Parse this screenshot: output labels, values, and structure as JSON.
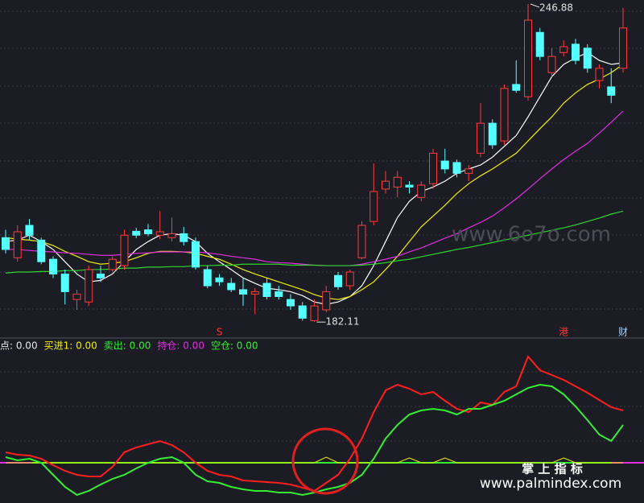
{
  "chart_data": [
    {
      "type": "candlestick",
      "ylim": [
        180.5,
        247.7
      ],
      "up_color": "#ff3b3b",
      "down_color": "#54ffff",
      "ohlc": [
        [
          199.3,
          200.9,
          196.1,
          196.9
        ],
        [
          195.2,
          201.8,
          194.4,
          200.5
        ],
        [
          201.8,
          203.1,
          198.8,
          199.8
        ],
        [
          198.8,
          199.3,
          193.9,
          194.4
        ],
        [
          194.9,
          195.5,
          191.1,
          191.9
        ],
        [
          191.9,
          192.8,
          185.7,
          188.3
        ],
        [
          186.7,
          188.7,
          184.6,
          187.8
        ],
        [
          186.2,
          193.6,
          185.4,
          192.8
        ],
        [
          191.9,
          193.6,
          190.3,
          191.1
        ],
        [
          192.8,
          195.5,
          192.3,
          194.9
        ],
        [
          193.6,
          200.9,
          192.8,
          199.8
        ],
        [
          200.6,
          201.3,
          199.2,
          199.8
        ],
        [
          200.9,
          202.1,
          199.6,
          200.1
        ],
        [
          199.8,
          204.7,
          199.0,
          200.5
        ],
        [
          199.3,
          203.4,
          198.5,
          200.1
        ],
        [
          200.1,
          201.5,
          197.7,
          198.5
        ],
        [
          198.5,
          199.3,
          192.8,
          193.3
        ],
        [
          192.8,
          193.6,
          189.0,
          189.5
        ],
        [
          191.1,
          191.9,
          189.5,
          190.3
        ],
        [
          190.0,
          191.1,
          188.2,
          188.7
        ],
        [
          188.7,
          191.1,
          185.4,
          187.8
        ],
        [
          187.8,
          189.0,
          183.7,
          188.3
        ],
        [
          190.0,
          191.1,
          186.7,
          187.3
        ],
        [
          188.3,
          189.5,
          186.7,
          187.3
        ],
        [
          186.7,
          187.8,
          184.6,
          185.4
        ],
        [
          185.4,
          186.2,
          182.4,
          182.9
        ],
        [
          182.4,
          186.7,
          182.11,
          185.4
        ],
        [
          184.6,
          189.5,
          184.1,
          188.3
        ],
        [
          191.6,
          192.3,
          188.7,
          189.3
        ],
        [
          189.5,
          192.8,
          188.7,
          192.3
        ],
        [
          195.2,
          202.6,
          194.9,
          201.8
        ],
        [
          202.6,
          214.4,
          201.8,
          208.7
        ],
        [
          209.2,
          212.9,
          208.3,
          210.8
        ],
        [
          209.6,
          212.9,
          207.5,
          211.6
        ],
        [
          210.0,
          210.8,
          208.3,
          209.6
        ],
        [
          207.5,
          210.8,
          206.7,
          210.0
        ],
        [
          210.3,
          217.4,
          209.2,
          216.5
        ],
        [
          214.9,
          217.4,
          212.4,
          213.3
        ],
        [
          214.6,
          215.2,
          211.6,
          212.4
        ],
        [
          212.4,
          214.1,
          210.8,
          213.3
        ],
        [
          216.5,
          226.7,
          215.7,
          222.6
        ],
        [
          222.6,
          223.4,
          217.4,
          218.2
        ],
        [
          219.0,
          230.5,
          218.2,
          229.7
        ],
        [
          230.5,
          235.4,
          228.8,
          229.3
        ],
        [
          228.0,
          246.88,
          227.2,
          243.6
        ],
        [
          241.1,
          242.0,
          235.4,
          236.2
        ],
        [
          232.9,
          237.9,
          232.1,
          236.2
        ],
        [
          237.0,
          239.5,
          236.2,
          238.2
        ],
        [
          238.7,
          239.8,
          234.6,
          235.4
        ],
        [
          237.9,
          238.7,
          232.9,
          233.8
        ],
        [
          231.3,
          234.6,
          229.7,
          233.8
        ],
        [
          230.0,
          233.8,
          226.7,
          228.3
        ],
        [
          233.8,
          246.1,
          232.9,
          242.0
        ]
      ],
      "lines": [
        {
          "color": "#ffffff",
          "values": [
            198.5,
            198.8,
            199.8,
            198.5,
            196.9,
            194.4,
            191.9,
            190.3,
            190.6,
            191.9,
            194.4,
            196.9,
            198.5,
            199.8,
            200.1,
            199.8,
            198.5,
            196.1,
            194.4,
            192.8,
            191.1,
            190.0,
            189.0,
            188.7,
            188.3,
            187.5,
            186.2,
            185.7,
            186.2,
            187.3,
            189.5,
            193.6,
            198.5,
            203.4,
            206.7,
            208.7,
            209.6,
            210.8,
            212.4,
            213.3,
            214.1,
            215.7,
            217.9,
            220.1,
            223.9,
            228.0,
            232.1,
            234.6,
            235.9,
            237.0,
            235.4,
            234.6,
            234.9
          ]
        },
        {
          "color": "#f0f000",
          "values": [
            199.3,
            199.0,
            198.8,
            198.5,
            197.7,
            196.5,
            195.5,
            194.4,
            193.9,
            194.1,
            194.4,
            195.2,
            196.1,
            196.5,
            196.5,
            196.4,
            196.1,
            195.5,
            194.9,
            193.9,
            192.8,
            191.9,
            191.1,
            190.3,
            189.5,
            188.7,
            187.7,
            187.0,
            186.7,
            187.3,
            188.7,
            190.3,
            192.8,
            195.5,
            198.5,
            201.5,
            203.7,
            205.9,
            208.3,
            210.3,
            211.9,
            213.3,
            214.9,
            216.5,
            219.0,
            221.5,
            223.9,
            226.7,
            228.8,
            230.5,
            231.6,
            232.9,
            234.6
          ]
        },
        {
          "color": "#e02ee0",
          "values": [
            196.9,
            196.9,
            196.7,
            196.5,
            196.4,
            196.2,
            196.1,
            195.9,
            195.7,
            195.7,
            195.9,
            196.1,
            196.2,
            196.4,
            196.4,
            196.4,
            196.4,
            196.2,
            195.9,
            195.5,
            195.2,
            194.9,
            194.4,
            194.2,
            194.1,
            193.9,
            193.7,
            193.6,
            193.6,
            193.6,
            193.9,
            194.4,
            194.9,
            195.5,
            196.4,
            197.2,
            198.2,
            199.2,
            200.1,
            201.3,
            202.4,
            203.7,
            205.4,
            207.2,
            209.2,
            211.3,
            213.3,
            215.2,
            216.9,
            218.5,
            220.6,
            222.8,
            225.1
          ]
        },
        {
          "color": "#2ed62e",
          "values": [
            192.1,
            192.3,
            192.3,
            192.4,
            192.4,
            192.6,
            192.6,
            192.8,
            192.8,
            192.9,
            193.1,
            193.1,
            193.3,
            193.3,
            193.4,
            193.4,
            193.6,
            193.6,
            193.7,
            193.7,
            193.9,
            193.9,
            193.9,
            193.9,
            193.7,
            193.7,
            193.7,
            193.6,
            193.6,
            193.6,
            193.7,
            193.9,
            194.2,
            194.6,
            194.9,
            195.4,
            195.9,
            196.4,
            196.9,
            197.3,
            197.8,
            198.3,
            198.8,
            199.3,
            199.8,
            200.3,
            200.8,
            201.3,
            201.9,
            202.6,
            203.3,
            204.1,
            204.7
          ]
        }
      ],
      "markers": [
        {
          "text": "S",
          "index": 18,
          "color": "#ff3030"
        },
        {
          "text": "港",
          "index": 47,
          "color": "#ff3030"
        },
        {
          "text": "财",
          "index": 52,
          "color": "#9fd0ff"
        }
      ],
      "watermark": "www.6o7o.com"
    },
    {
      "type": "line",
      "ylim": [
        -25,
        75
      ],
      "series": [
        {
          "name": "点: 0.00",
          "color": "#e8e8e8",
          "line_color": "#ff1e1e",
          "values": [
            6.5,
            5,
            4.5,
            2.5,
            -1.5,
            -5,
            -7.5,
            -8.5,
            -8.5,
            -2.5,
            6.5,
            9.5,
            11.5,
            13.5,
            11,
            6.5,
            0,
            -5,
            -7.5,
            -8.5,
            -11,
            -11.5,
            -12,
            -12.5,
            -13.5,
            -15.5,
            -17.5,
            -12.5,
            -7.5,
            2.5,
            15,
            31.5,
            45,
            48.5,
            46,
            42.5,
            44,
            38.5,
            33.5,
            31.5,
            37.5,
            36,
            44,
            47.5,
            66,
            57.5,
            54.5,
            51.5,
            47.5,
            43.5,
            39,
            34.5,
            32.5
          ]
        },
        {
          "name": "买进1: 0.00",
          "color": "#f0f000",
          "line_color": "#f0f000",
          "values": [
            0,
            0,
            0,
            0,
            0,
            0,
            0,
            0,
            0,
            0,
            0,
            0,
            0,
            0,
            0,
            0,
            0,
            0,
            0,
            0,
            0,
            0,
            0,
            0,
            0,
            0,
            0,
            3.5,
            0,
            0,
            0,
            0,
            0,
            0,
            3,
            0,
            0,
            3,
            0,
            0,
            0,
            0,
            0,
            0,
            0,
            0,
            0,
            3,
            0,
            0,
            0,
            0,
            0
          ]
        },
        {
          "name": "卖出: 0.00",
          "color": "#33ee33",
          "line_color": "#33ee33",
          "level": 0
        },
        {
          "name": "持仓: 0.00",
          "color": "#e02ee0",
          "line_color": "#e02ee0",
          "level": 0
        },
        {
          "name": "空仓: 0.00",
          "color": "#33ee33",
          "line_color": "#33ee33",
          "values": [
            3.5,
            1.5,
            2.5,
            0,
            -7.5,
            -15,
            -20,
            -17.5,
            -13.5,
            -10,
            -7.5,
            -3.5,
            0,
            2.5,
            3.5,
            0,
            -7.5,
            -11.5,
            -12.5,
            -15,
            -16.5,
            -17.5,
            -17.5,
            -18.5,
            -18.5,
            -20,
            -18.5,
            -16.5,
            -15,
            -12.5,
            -7.5,
            2.5,
            15,
            23.5,
            30,
            32.5,
            33.5,
            32.5,
            30,
            33.5,
            33.5,
            36,
            38.5,
            42.5,
            46.5,
            48.5,
            47.5,
            42.5,
            35,
            26.5,
            17.5,
            13.5,
            23.5
          ]
        }
      ],
      "watermark_title": "掌 上 指 标",
      "watermark": "www.palmindex.com"
    }
  ]
}
